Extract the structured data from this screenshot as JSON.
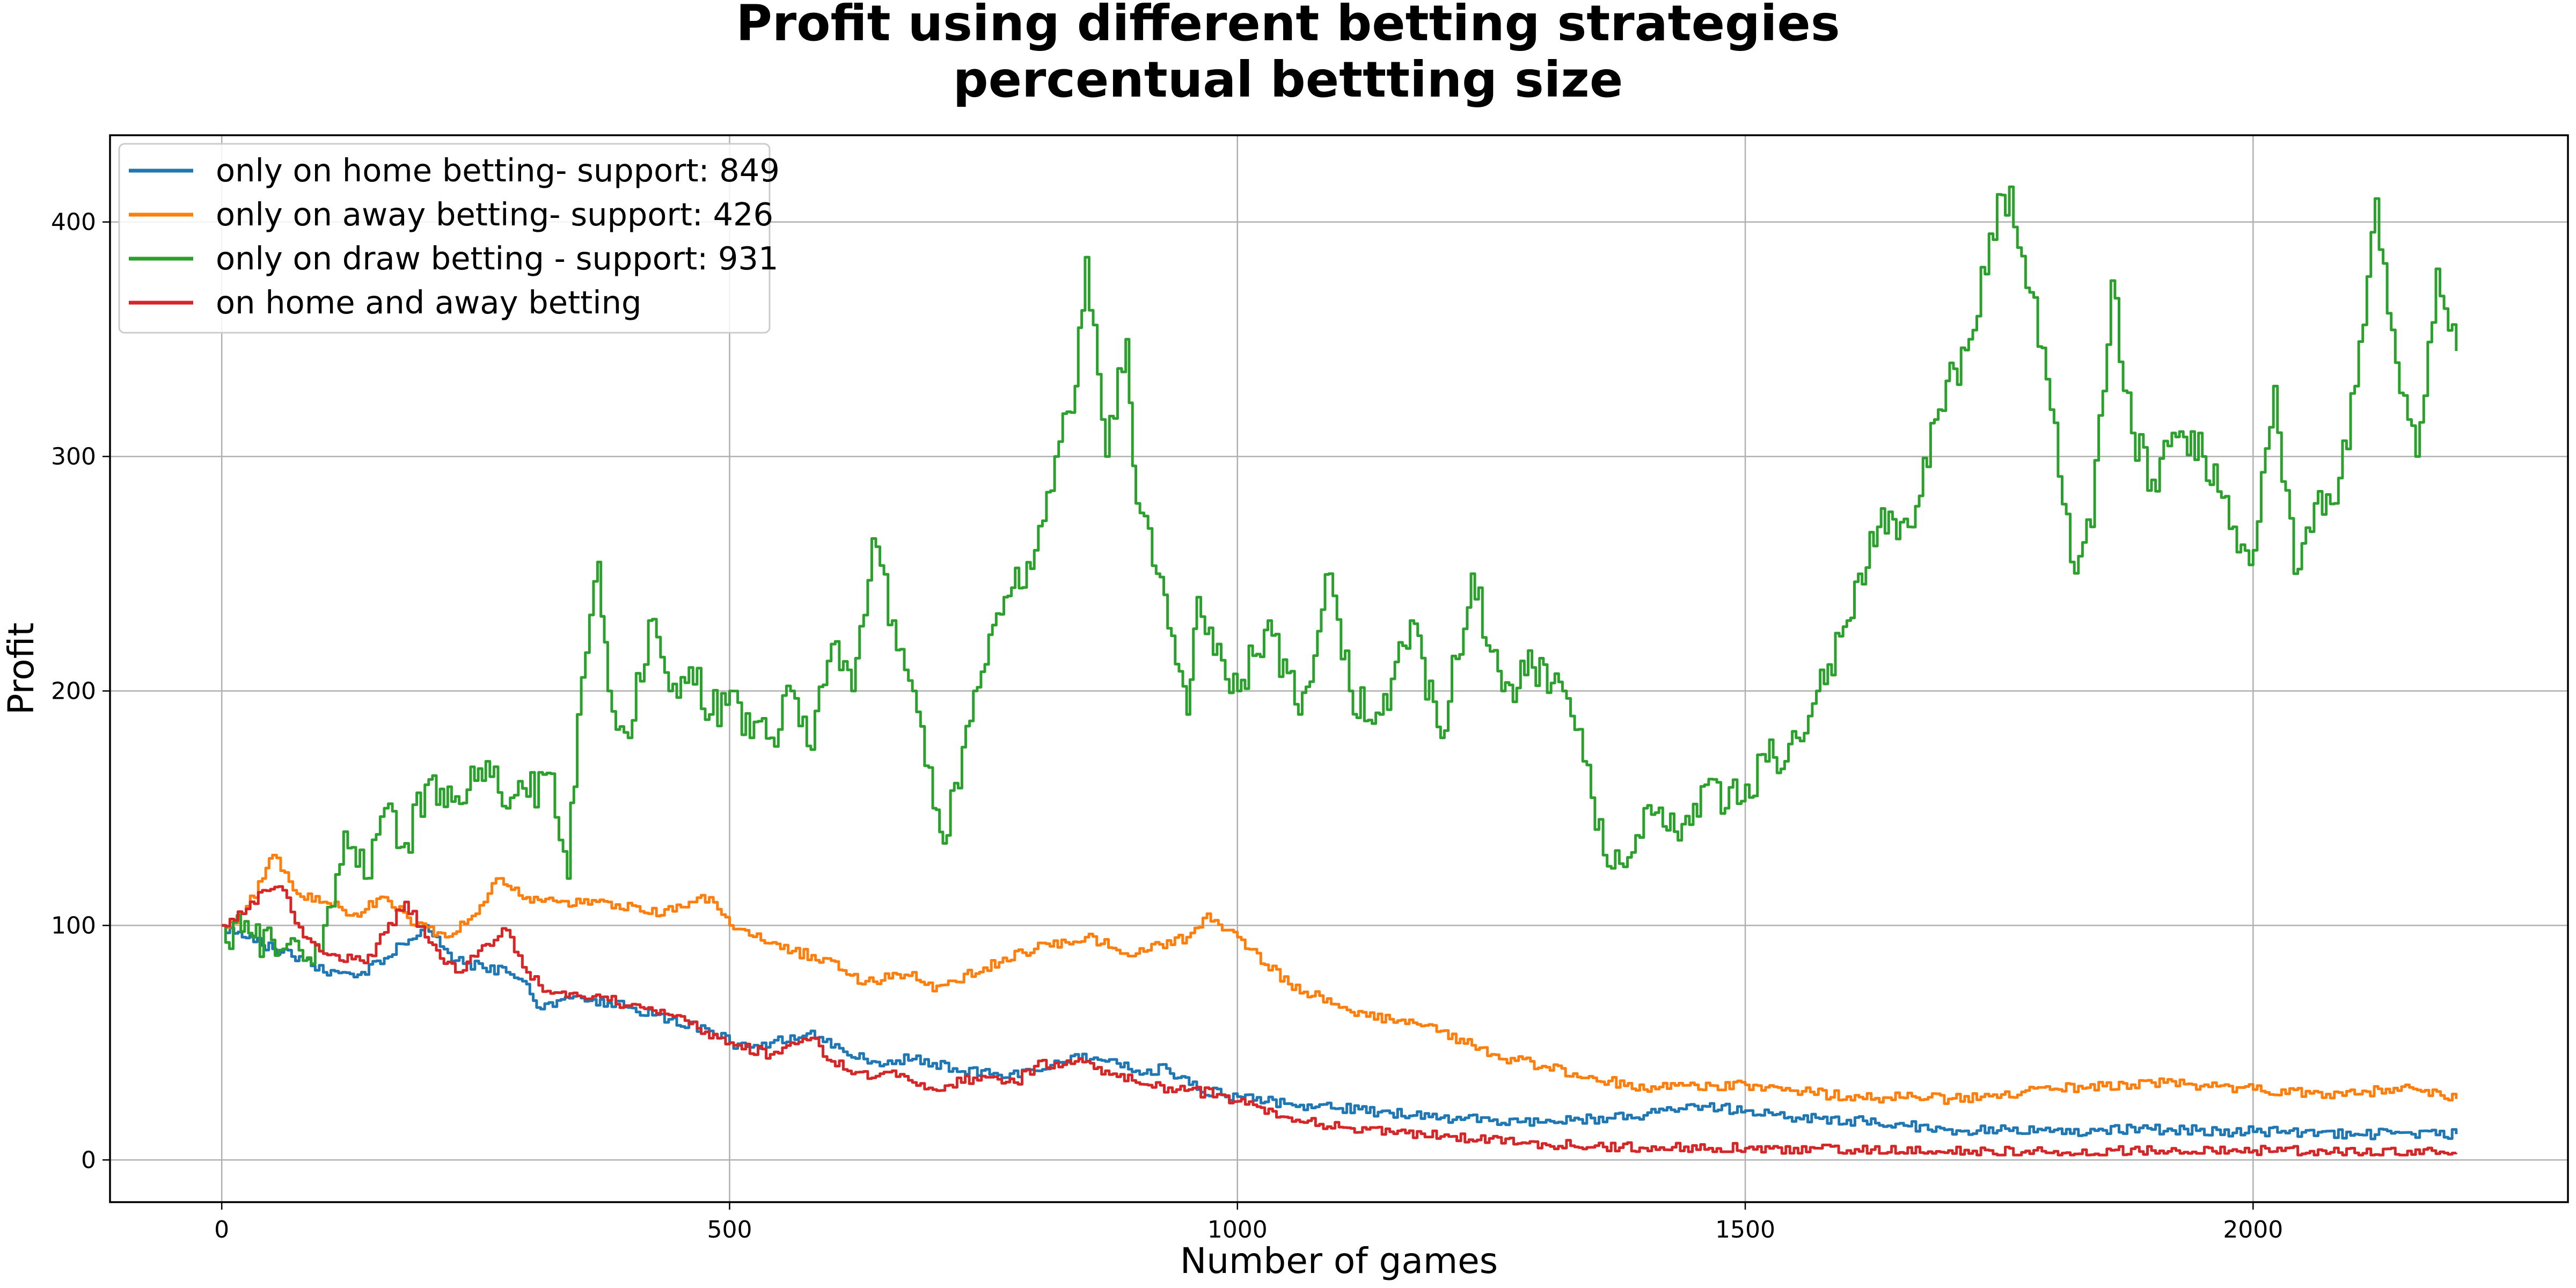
{
  "chart_data": {
    "type": "line",
    "title": "Profit using different betting strategies",
    "subtitle": "percentual bettting size",
    "xlabel": "Number of games",
    "ylabel": "Profit",
    "xlim": [
      -110,
      2310
    ],
    "ylim": [
      -18,
      437
    ],
    "xticks": [
      0,
      500,
      1000,
      1500,
      2000
    ],
    "yticks": [
      0,
      100,
      200,
      300,
      400
    ],
    "grid": true,
    "legend_position": "top-left",
    "series": [
      {
        "name": "only on home betting- support: 849",
        "color": "#1f77b4",
        "x": [
          0,
          20,
          50,
          80,
          100,
          130,
          160,
          200,
          230,
          280,
          300,
          310,
          330,
          350,
          380,
          400,
          440,
          480,
          500,
          520,
          540,
          560,
          580,
          600,
          640,
          680,
          720,
          760,
          800,
          840,
          870,
          900,
          930,
          960,
          1000,
          1050,
          1100,
          1150,
          1200,
          1300,
          1400,
          1450,
          1500,
          1550,
          1600,
          1700,
          1800,
          1900,
          2000,
          2100,
          2200
        ],
        "y": [
          100,
          95,
          90,
          85,
          80,
          78,
          86,
          100,
          85,
          80,
          75,
          65,
          68,
          70,
          67,
          65,
          60,
          55,
          50,
          48,
          50,
          53,
          55,
          48,
          42,
          43,
          39,
          37,
          38,
          45,
          42,
          38,
          39,
          30,
          27,
          24,
          22,
          20,
          18,
          16,
          19,
          23,
          21,
          18,
          17,
          13,
          12,
          13,
          12,
          11,
          11
        ]
      },
      {
        "name": "only on away betting- support: 426",
        "color": "#ff7f0e",
        "x": [
          0,
          20,
          40,
          50,
          70,
          100,
          130,
          160,
          190,
          220,
          250,
          270,
          300,
          330,
          380,
          420,
          460,
          480,
          500,
          550,
          600,
          630,
          680,
          700,
          750,
          800,
          850,
          900,
          950,
          970,
          1000,
          1050,
          1100,
          1150,
          1200,
          1250,
          1300,
          1350,
          1400,
          1450,
          1500,
          1600,
          1700,
          1800,
          1900,
          2000,
          2100,
          2150,
          2200
        ],
        "y": [
          100,
          105,
          120,
          130,
          115,
          110,
          105,
          112,
          100,
          95,
          105,
          120,
          112,
          110,
          110,
          105,
          110,
          112,
          100,
          90,
          85,
          75,
          80,
          72,
          82,
          90,
          95,
          88,
          95,
          105,
          95,
          75,
          65,
          60,
          55,
          45,
          40,
          35,
          30,
          32,
          32,
          27,
          26,
          30,
          33,
          30,
          28,
          32,
          26
        ]
      },
      {
        "name": "only on draw betting - support: 931",
        "color": "#2ca02c",
        "x": [
          0,
          30,
          60,
          80,
          100,
          120,
          140,
          160,
          180,
          200,
          230,
          260,
          280,
          300,
          320,
          340,
          350,
          370,
          380,
          400,
          420,
          440,
          460,
          480,
          500,
          520,
          540,
          560,
          580,
          600,
          620,
          640,
          660,
          680,
          700,
          710,
          740,
          770,
          800,
          820,
          840,
          850,
          870,
          890,
          900,
          920,
          950,
          960,
          980,
          1000,
          1030,
          1060,
          1090,
          1110,
          1140,
          1170,
          1200,
          1230,
          1260,
          1290,
          1320,
          1340,
          1360,
          1380,
          1400,
          1430,
          1460,
          1480,
          1500,
          1520,
          1550,
          1570,
          1600,
          1630,
          1660,
          1690,
          1720,
          1740,
          1760,
          1780,
          1800,
          1820,
          1840,
          1860,
          1880,
          1900,
          1920,
          1950,
          1980,
          2000,
          2020,
          2040,
          2060,
          2080,
          2100,
          2120,
          2140,
          2160,
          2180,
          2200
        ],
        "y": [
          100,
          95,
          90,
          85,
          100,
          140,
          120,
          150,
          135,
          160,
          155,
          170,
          150,
          155,
          165,
          120,
          190,
          255,
          200,
          180,
          230,
          200,
          210,
          190,
          200,
          180,
          180,
          200,
          175,
          220,
          200,
          265,
          230,
          200,
          150,
          135,
          200,
          240,
          260,
          300,
          330,
          385,
          300,
          350,
          280,
          250,
          190,
          240,
          220,
          200,
          230,
          190,
          250,
          200,
          190,
          230,
          180,
          250,
          200,
          210,
          200,
          170,
          130,
          125,
          150,
          140,
          160,
          150,
          160,
          170,
          180,
          200,
          230,
          270,
          270,
          320,
          350,
          395,
          415,
          370,
          320,
          255,
          270,
          375,
          310,
          290,
          310,
          300,
          270,
          260,
          330,
          250,
          280,
          280,
          330,
          410,
          340,
          300,
          380,
          345
        ]
      },
      {
        "name": "on home and away betting",
        "color": "#d62728",
        "x": [
          0,
          20,
          40,
          60,
          80,
          100,
          140,
          180,
          200,
          230,
          260,
          280,
          300,
          320,
          350,
          380,
          420,
          460,
          500,
          540,
          560,
          580,
          600,
          640,
          660,
          700,
          740,
          780,
          800,
          840,
          870,
          900,
          940,
          980,
          1000,
          1050,
          1100,
          1150,
          1200,
          1300,
          1400,
          1500,
          1600,
          1700,
          1800,
          1900,
          2000,
          2100,
          2200
        ],
        "y": [
          100,
          105,
          115,
          115,
          95,
          88,
          84,
          110,
          95,
          80,
          92,
          98,
          80,
          72,
          70,
          68,
          65,
          58,
          50,
          45,
          50,
          52,
          42,
          35,
          38,
          30,
          35,
          33,
          40,
          42,
          38,
          33,
          30,
          28,
          25,
          18,
          14,
          12,
          10,
          7,
          5,
          5,
          4,
          4,
          3,
          4,
          4,
          3,
          3
        ]
      }
    ]
  }
}
